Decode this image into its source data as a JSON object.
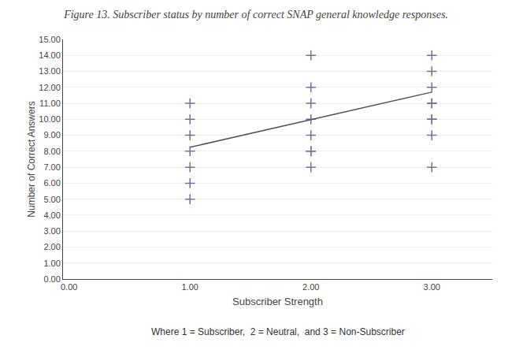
{
  "chart_data": {
    "type": "scatter",
    "title": "Figure 13. Subscriber status by number of correct SNAP general knowledge responses.",
    "xlabel": "Subscriber Strength",
    "ylabel": "Number of Correct Answers",
    "annotations": [
      "Where 1 = Subscriber,  2 = Neutral,  and 3 = Non-Subscriber"
    ],
    "xlim": [
      -0.05,
      3.5
    ],
    "ylim": [
      0,
      15.0
    ],
    "xticks": [
      {
        "value": 0.0,
        "label": "0.00"
      },
      {
        "value": 1.0,
        "label": "1.00"
      },
      {
        "value": 2.0,
        "label": "2.00"
      },
      {
        "value": 3.0,
        "label": "3.00"
      }
    ],
    "yticks": [
      {
        "value": 0.0,
        "label": "0.00"
      },
      {
        "value": 1.0,
        "label": "1.00"
      },
      {
        "value": 2.0,
        "label": "2.00"
      },
      {
        "value": 3.0,
        "label": "3.00"
      },
      {
        "value": 4.0,
        "label": "4.00"
      },
      {
        "value": 5.0,
        "label": "5.00"
      },
      {
        "value": 6.0,
        "label": "6.00"
      },
      {
        "value": 7.0,
        "label": "7.00"
      },
      {
        "value": 8.0,
        "label": "8.00"
      },
      {
        "value": 9.0,
        "label": "9.00"
      },
      {
        "value": 10.0,
        "label": "10.00"
      },
      {
        "value": 11.0,
        "label": "11.00"
      },
      {
        "value": 12.0,
        "label": "12.00"
      },
      {
        "value": 13.0,
        "label": "13.00"
      },
      {
        "value": 14.0,
        "label": "14.00"
      },
      {
        "value": 15.0,
        "label": "15.00"
      }
    ],
    "grid": "y",
    "series": [
      {
        "type": "scatter",
        "color": "#7B6BA0",
        "marker": "plus",
        "x": [
          1,
          1,
          1,
          1,
          1,
          1,
          1,
          2,
          2,
          2,
          2,
          2,
          2,
          2,
          2,
          3,
          3,
          3,
          3,
          3,
          3,
          3,
          3,
          3
        ],
        "values": [
          5,
          6,
          7,
          8,
          9,
          10,
          11,
          7,
          8,
          9,
          10,
          11,
          12,
          14,
          8,
          7,
          9,
          10,
          11,
          11,
          12,
          13,
          14,
          10
        ]
      },
      {
        "type": "line",
        "color": "#555555",
        "x": [
          1.0,
          3.0
        ],
        "values": [
          8.25,
          11.7
        ]
      }
    ]
  }
}
